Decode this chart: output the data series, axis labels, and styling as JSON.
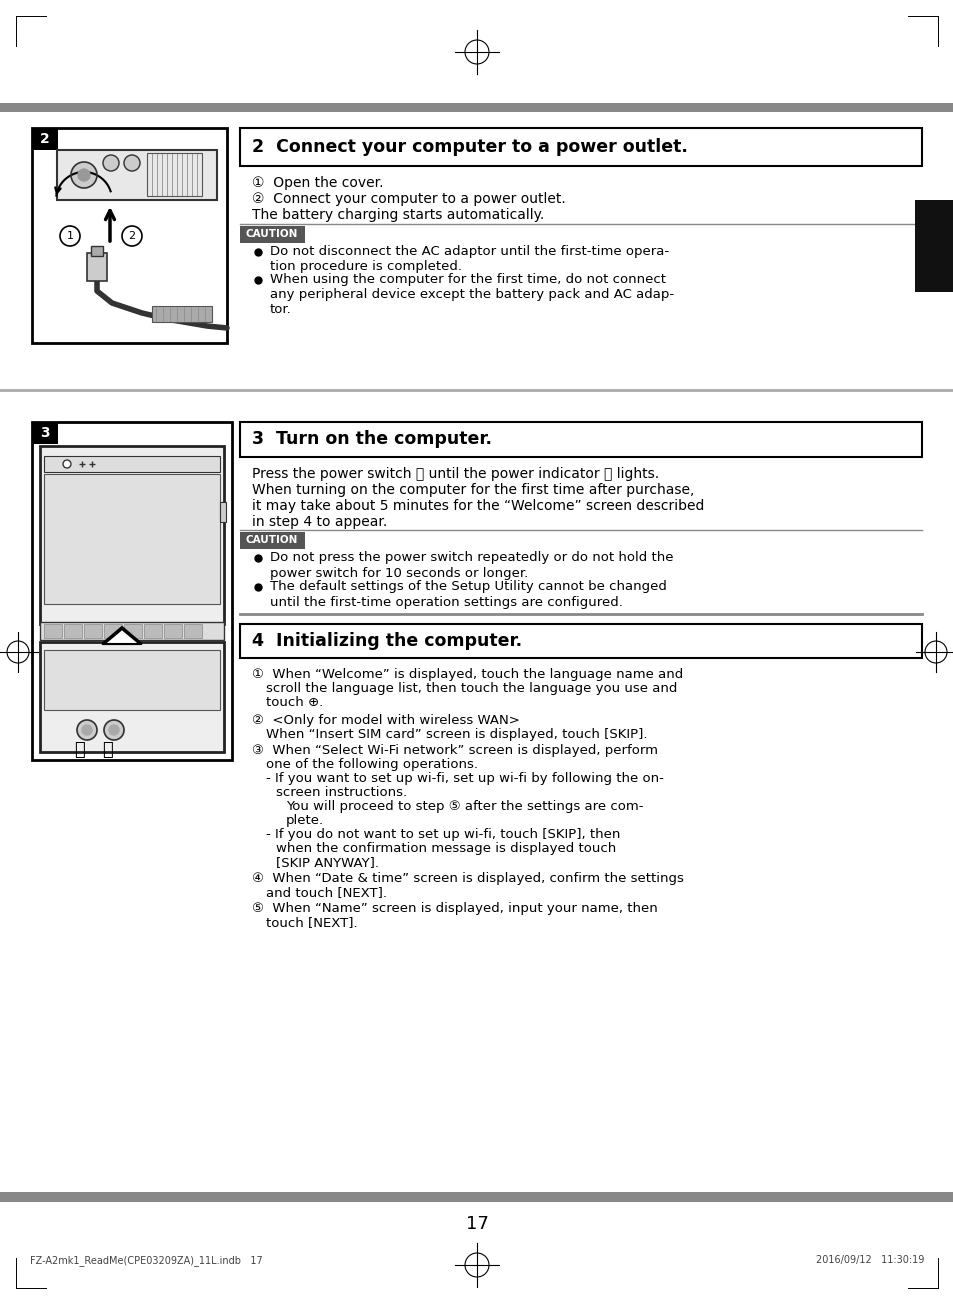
{
  "page_bg": "#ffffff",
  "gray_bar_color": "#888888",
  "section2_title": "2  Connect your computer to a power outlet.",
  "section2_steps_1": "①  Open the cover.",
  "section2_steps_2": "②  Connect your computer to a power outlet.",
  "section2_steps_3": "The battery charging starts automatically.",
  "caution_label": "CAUTION",
  "caution_bg": "#555555",
  "caution_text_color": "#ffffff",
  "caution2_bullet1_line1": "Do not disconnect the AC adaptor until the first-time opera-",
  "caution2_bullet1_line2": "tion procedure is completed.",
  "caution2_bullet2_line1": "When using the computer for the first time, do not connect",
  "caution2_bullet2_line2": "any peripheral device except the battery pack and AC adap-",
  "caution2_bullet2_line3": "tor.",
  "section3_title": "3  Turn on the computer.",
  "section3_line1": "Press the power switch ⏻ until the power indicator ⓡ lights.",
  "section3_line2": "When turning on the computer for the first time after purchase,",
  "section3_line3": "it may take about 5 minutes for the “Welcome” screen described",
  "section3_line4": "in step 4 to appear.",
  "caution3_bullet1_line1": "Do not press the power switch repeatedly or do not hold the",
  "caution3_bullet1_line2": "power switch for 10 seconds or longer.",
  "caution3_bullet2_line1": "The default settings of the Setup Utility cannot be changed",
  "caution3_bullet2_line2": "until the first-time operation settings are configured.",
  "section4_title": "4  Initializing the computer.",
  "sec4_1a": "①  When “Welcome” is displayed, touch the language name and",
  "sec4_1b": "scroll the language list, then touch the language you use and",
  "sec4_1c": "touch ⊕.",
  "sec4_2a": "②  <Only for model with wireless WAN>",
  "sec4_2b": "When “Insert SIM card” screen is displayed, touch [SKIP].",
  "sec4_3a": "③  When “Select Wi-Fi network” screen is displayed, perform",
  "sec4_3b": "one of the following operations.",
  "sec4_3c": "- If you want to set up wi-fi, set up wi-fi by following the on-",
  "sec4_3d": "screen instructions.",
  "sec4_3e": "You will proceed to step ⑤ after the settings are com-",
  "sec4_3f": "plete.",
  "sec4_3g": "- If you do not want to set up wi-fi, touch [SKIP], then",
  "sec4_3h": "when the confirmation message is displayed touch",
  "sec4_3i": "[SKIP ANYWAY].",
  "sec4_4a": "④  When “Date & time” screen is displayed, confirm the settings",
  "sec4_4b": "and touch [NEXT].",
  "sec4_5a": "⑤  When “Name” screen is displayed, input your name, then",
  "sec4_5b": "touch [NEXT].",
  "page_number": "17",
  "footer_left": "FZ-A2mk1_ReadMe(CPE03209ZA)_11L.indb   17",
  "footer_right": "2016/09/12   11:30:19",
  "dark_tab_color": "#111111"
}
